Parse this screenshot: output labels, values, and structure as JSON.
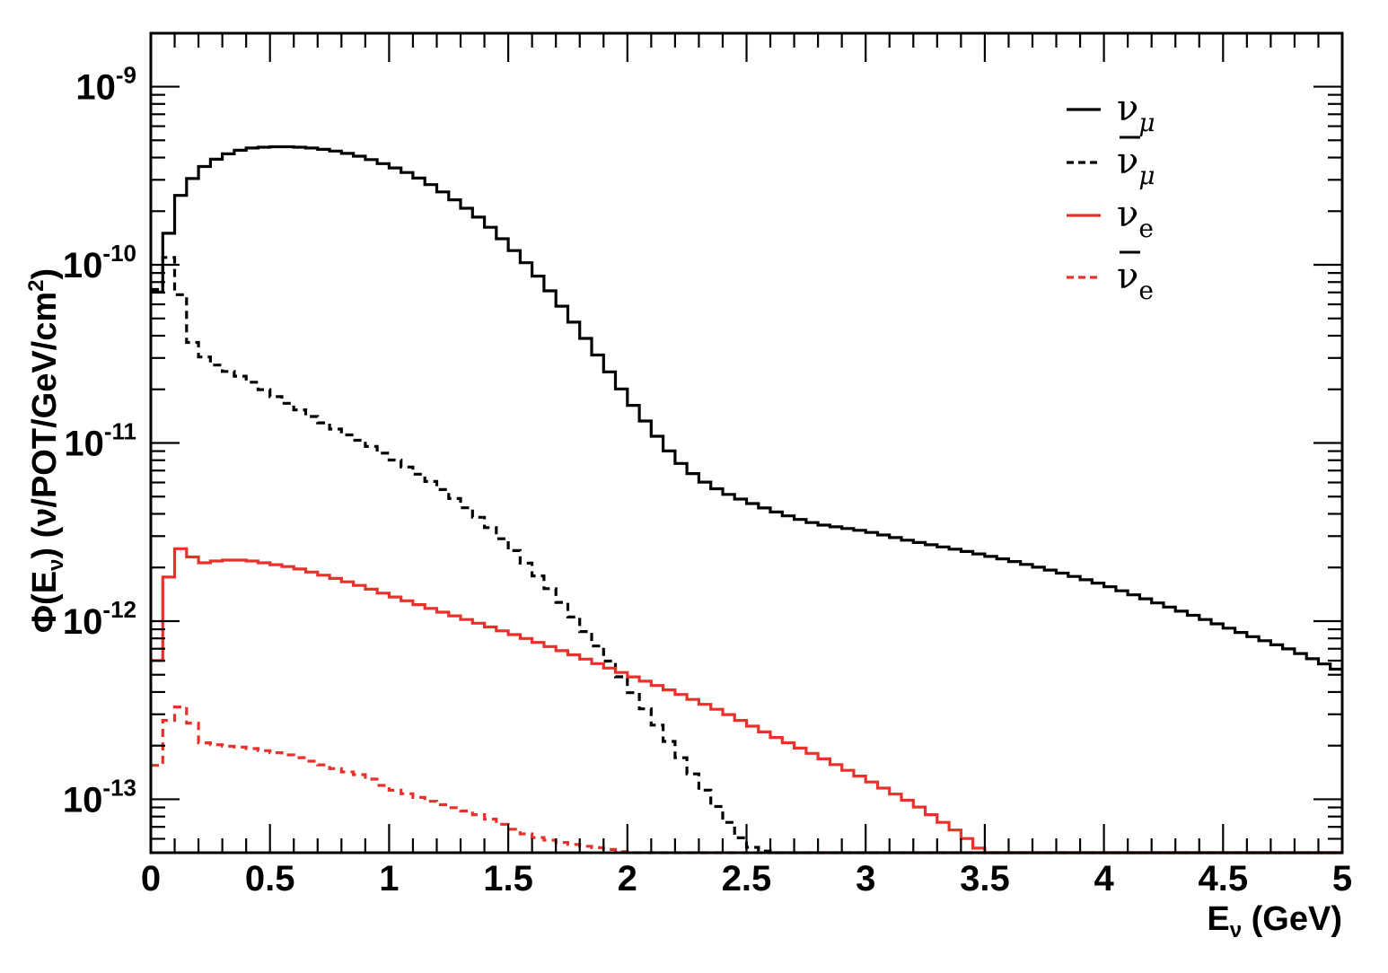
{
  "chart_data": {
    "type": "line",
    "xlabel": {
      "main": "E",
      "sub": "ν",
      "tail": " (GeV)"
    },
    "ylabel": {
      "pre": "Φ(E",
      "sub": "ν",
      "mid": ") (ν/POT/GeV/cm",
      "sup": "2",
      "post": ")"
    },
    "xlim": [
      0,
      5
    ],
    "ylim_log10": [
      -13.3,
      -8.7
    ],
    "yscale": "log",
    "x_ticks": [
      "0",
      "0.5",
      "1",
      "1.5",
      "2",
      "2.5",
      "3",
      "3.5",
      "4",
      "4.5",
      "5"
    ],
    "y_ticks": [
      {
        "base": "10",
        "exp": "-9"
      },
      {
        "base": "10",
        "exp": "-10"
      },
      {
        "base": "10",
        "exp": "-11"
      },
      {
        "base": "10",
        "exp": "-12"
      },
      {
        "base": "10",
        "exp": "-13"
      }
    ],
    "legend_position": "top-right",
    "bin_width": 0.05,
    "series": [
      {
        "name": "ν_μ",
        "legend_base": "ν",
        "legend_sub": "μ",
        "bar": false,
        "color": "#000000",
        "dashed": false,
        "x": [
          0,
          0.1,
          0.2,
          0.3,
          0.4,
          0.5,
          0.6,
          0.7,
          0.8,
          0.9,
          1.0,
          1.1,
          1.2,
          1.3,
          1.4,
          1.5,
          1.6,
          1.7,
          1.8,
          1.9,
          2.0,
          2.1,
          2.2,
          2.3,
          2.4,
          2.5,
          2.6,
          2.7,
          2.8,
          3.0,
          3.2,
          3.4,
          3.6,
          3.8,
          4.0,
          4.2,
          4.4,
          4.6,
          4.8,
          5.0
        ],
        "y": [
          4.8e-11,
          2.2e-10,
          3.4e-10,
          4.1e-10,
          4.5e-10,
          4.6e-10,
          4.6e-10,
          4.5e-10,
          4.3e-10,
          4e-10,
          3.6e-10,
          3.2e-10,
          2.7e-10,
          2.2e-10,
          1.75e-10,
          1.3e-10,
          9.5e-11,
          6.5e-11,
          4.3e-11,
          2.8e-11,
          1.8e-11,
          1.2e-11,
          8.2e-12,
          6.3e-12,
          5.3e-12,
          4.7e-12,
          4.2e-12,
          3.8e-12,
          3.5e-12,
          3.2e-12,
          2.8e-12,
          2.5e-12,
          2.2e-12,
          1.9e-12,
          1.6e-12,
          1.3e-12,
          1.05e-12,
          8.4e-13,
          6.8e-13,
          5.2e-13
        ]
      },
      {
        "name": "ν̄_μ",
        "legend_base": "ν",
        "legend_sub": "μ",
        "bar": true,
        "color": "#000000",
        "dashed": true,
        "x": [
          0,
          0.05,
          0.1,
          0.15,
          0.2,
          0.3,
          0.4,
          0.5,
          0.6,
          0.7,
          0.8,
          0.9,
          1.0,
          1.1,
          1.2,
          1.3,
          1.4,
          1.5,
          1.6,
          1.7,
          1.8,
          1.9,
          2.0,
          2.1,
          2.2,
          2.3,
          2.4,
          2.5,
          2.6,
          2.7,
          2.8,
          2.9,
          3.0,
          5.0
        ],
        "y": [
          4.8e-11,
          1.1e-10,
          1.1e-10,
          4.2e-11,
          3.2e-11,
          2.6e-11,
          2.3e-11,
          1.9e-11,
          1.6e-11,
          1.35e-11,
          1.15e-11,
          1e-11,
          8.4e-12,
          7e-12,
          5.8e-12,
          4.6e-12,
          3.6e-12,
          2.7e-12,
          1.95e-12,
          1.4e-12,
          9.6e-13,
          6.6e-13,
          4.4e-13,
          2.9e-13,
          1.9e-13,
          1.25e-13,
          8.2e-14,
          5.5e-14,
          5e-14,
          5e-14,
          5e-14,
          5e-14,
          5e-14,
          5e-14
        ]
      },
      {
        "name": "ν_e",
        "legend_base": "ν",
        "legend_sub": "e",
        "bar": false,
        "color": "#e8312b",
        "dashed": false,
        "x": [
          0,
          0.05,
          0.1,
          0.15,
          0.2,
          0.3,
          0.4,
          0.5,
          0.6,
          0.7,
          0.8,
          0.9,
          1.0,
          1.2,
          1.4,
          1.6,
          1.8,
          2.0,
          2.2,
          2.4,
          2.6,
          2.8,
          3.0,
          3.2,
          3.4,
          3.5,
          5.0
        ],
        "y": [
          3e-13,
          1.2e-12,
          2.6e-12,
          2.5e-12,
          2.1e-12,
          2.2e-12,
          2.2e-12,
          2.1e-12,
          2e-12,
          1.85e-12,
          1.7e-12,
          1.55e-12,
          1.4e-12,
          1.15e-12,
          9.5e-13,
          7.8e-13,
          6.3e-13,
          5e-13,
          4e-13,
          3.1e-13,
          2.3e-13,
          1.75e-13,
          1.3e-13,
          9.5e-14,
          6.4e-14,
          5e-14,
          5e-14
        ]
      },
      {
        "name": "ν̄_e",
        "legend_base": "ν",
        "legend_sub": "e",
        "bar": true,
        "color": "#e8312b",
        "dashed": true,
        "x": [
          0,
          0.05,
          0.1,
          0.15,
          0.2,
          0.3,
          0.4,
          0.5,
          0.6,
          0.7,
          0.8,
          0.9,
          1.0,
          1.1,
          1.2,
          1.3,
          1.4,
          1.5,
          1.6,
          1.7,
          1.8,
          1.9,
          2.0,
          5.0
        ],
        "y": [
          1e-13,
          2.4e-13,
          3.2e-13,
          3.4e-13,
          2.1e-13,
          2e-13,
          1.95e-13,
          1.85e-13,
          1.75e-13,
          1.6e-13,
          1.45e-13,
          1.35e-13,
          1.15e-13,
          1.05e-13,
          9.5e-14,
          8.8e-14,
          8e-14,
          7e-14,
          6.2e-14,
          5.8e-14,
          5.5e-14,
          5.3e-14,
          5e-14,
          5e-14
        ]
      }
    ]
  }
}
